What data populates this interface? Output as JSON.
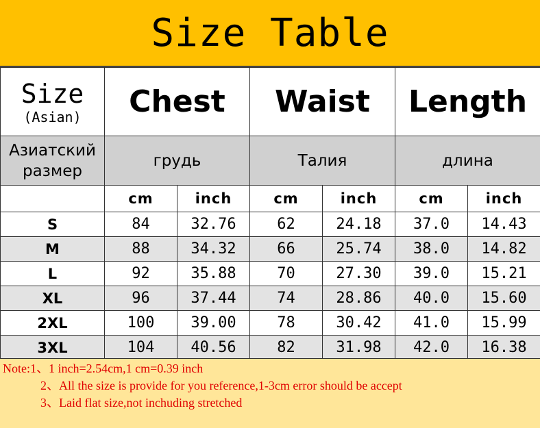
{
  "title": "Size Table",
  "header": {
    "size": "Size",
    "size_sub": "(Asian)",
    "chest": "Chest",
    "waist": "Waist",
    "length": "Length"
  },
  "header_ru": {
    "size": "Азиатский размер",
    "chest": "грудь",
    "waist": "Талия",
    "length": "длина"
  },
  "units": [
    "cm",
    "inch",
    "cm",
    "inch",
    "cm",
    "inch"
  ],
  "rows": [
    [
      "S",
      "84",
      "32.76",
      "62",
      "24.18",
      "37.0",
      "14.43"
    ],
    [
      "M",
      "88",
      "34.32",
      "66",
      "25.74",
      "38.0",
      "14.82"
    ],
    [
      "L",
      "92",
      "35.88",
      "70",
      "27.30",
      "39.0",
      "15.21"
    ],
    [
      "XL",
      "96",
      "37.44",
      "74",
      "28.86",
      "40.0",
      "15.60"
    ],
    [
      "2XL",
      "100",
      "39.00",
      "78",
      "30.42",
      "41.0",
      "15.99"
    ],
    [
      "3XL",
      "104",
      "40.56",
      "82",
      "31.98",
      "42.0",
      "16.38"
    ]
  ],
  "notes": [
    "Note:1、1 inch=2.54cm,1 cm=0.39 inch",
    "2、All the size is provide for you reference,1-3cm error should be accept",
    "3、Laid flat size,not inchuding stretched"
  ],
  "colors": {
    "title_bg": "#FFC000",
    "note_bg": "#FFE699",
    "note_text": "#E00000",
    "ru_row_bg": "#D0D0D0",
    "alt_row_bg": "#E3E3E3"
  }
}
